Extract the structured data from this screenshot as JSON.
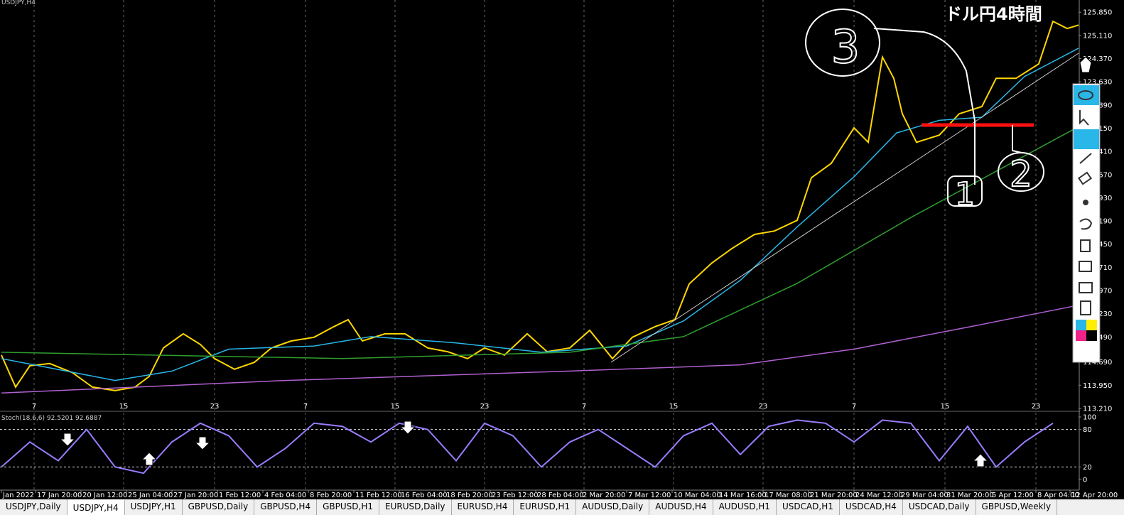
{
  "chart_data": [
    {
      "type": "line",
      "symbol": "USDJPY,H4",
      "annotation_title": "ドル円4時間",
      "handwritten": [
        "3",
        "1",
        "2"
      ],
      "xlim": [
        -0.5,
        379
      ],
      "ylim": [
        113.14,
        126.24
      ],
      "xticks": [
        {
          "value": 11.5,
          "label": "7"
        },
        {
          "value": 43,
          "label": "15"
        },
        {
          "value": 75,
          "label": "23"
        },
        {
          "value": 107,
          "label": "7"
        },
        {
          "value": 138.5,
          "label": "15"
        },
        {
          "value": 170,
          "label": "23"
        },
        {
          "value": 205,
          "label": "7"
        },
        {
          "value": 236.5,
          "label": "15"
        },
        {
          "value": 268,
          "label": "23"
        },
        {
          "value": 300,
          "label": "7"
        },
        {
          "value": 332,
          "label": "15"
        },
        {
          "value": 364,
          "label": "23"
        }
      ],
      "yticks": [
        {
          "value": 125.85,
          "label": "125.850"
        },
        {
          "value": 125.11,
          "label": "125.110"
        },
        {
          "value": 124.37,
          "label": "124.370"
        },
        {
          "value": 123.63,
          "label": "123.630"
        },
        {
          "value": 122.89,
          "label": "122.890"
        },
        {
          "value": 122.15,
          "label": "122.150"
        },
        {
          "value": 121.41,
          "label": "121.410"
        },
        {
          "value": 120.67,
          "label": "120.670"
        },
        {
          "value": 119.93,
          "label": "119.930"
        },
        {
          "value": 119.19,
          "label": "119.190"
        },
        {
          "value": 118.45,
          "label": "118.450"
        },
        {
          "value": 117.71,
          "label": "117.710"
        },
        {
          "value": 116.97,
          "label": "116.970"
        },
        {
          "value": 116.23,
          "label": "116.230"
        },
        {
          "value": 115.49,
          "label": "115.490"
        },
        {
          "value": 114.69,
          "label": "114.690"
        },
        {
          "value": 113.95,
          "label": "113.950"
        },
        {
          "value": 113.21,
          "label": "113.210"
        }
      ],
      "grid": true,
      "series": [
        {
          "color": "#ffd700",
          "x": [
            0,
            5,
            10,
            17,
            25,
            32,
            40,
            47,
            52,
            57,
            64,
            70,
            75,
            82,
            89,
            95,
            102,
            110,
            117,
            122,
            127,
            135,
            142,
            150,
            157,
            164,
            170,
            177,
            185,
            192,
            200,
            207,
            215,
            222,
            230,
            237,
            242,
            250,
            257,
            265,
            272,
            280,
            285,
            292,
            300,
            305,
            310,
            314,
            317,
            322,
            330,
            337,
            345,
            350,
            357,
            365,
            370,
            375,
            379
          ],
          "values": [
            114.91,
            113.89,
            114.57,
            114.64,
            114.35,
            113.89,
            113.78,
            113.89,
            114.23,
            115.14,
            115.59,
            115.25,
            114.8,
            114.46,
            114.68,
            115.14,
            115.36,
            115.48,
            115.82,
            116.04,
            115.36,
            115.59,
            115.59,
            115.14,
            115.02,
            114.8,
            115.14,
            114.91,
            115.59,
            115.02,
            115.14,
            115.7,
            114.8,
            115.48,
            115.82,
            116.04,
            117.18,
            117.85,
            118.31,
            118.76,
            118.87,
            119.21,
            120.57,
            121.03,
            122.16,
            121.7,
            124.42,
            123.74,
            122.61,
            121.7,
            121.93,
            122.61,
            122.84,
            123.74,
            123.74,
            124.2,
            125.56,
            125.33,
            125.44
          ]
        },
        {
          "color": "#29b6e8",
          "x": [
            0,
            40,
            60,
            80,
            110,
            130,
            160,
            190,
            220,
            240,
            260,
            280,
            300,
            315,
            330,
            345,
            360,
            379
          ],
          "values": [
            114.8,
            114.1,
            114.4,
            115.1,
            115.2,
            115.5,
            115.3,
            115.0,
            115.2,
            116.0,
            117.3,
            119.0,
            120.6,
            122.0,
            122.4,
            122.5,
            123.8,
            124.7
          ]
        },
        {
          "color": "#2e9e2e",
          "x": [
            0,
            120,
            200,
            240,
            280,
            320,
            379
          ],
          "values": [
            115.0,
            114.8,
            115.0,
            115.5,
            117.2,
            119.3,
            122.2
          ]
        },
        {
          "color": "#b060d0",
          "x": [
            0,
            100,
            200,
            260,
            300,
            340,
            379
          ],
          "values": [
            113.7,
            114.1,
            114.4,
            114.6,
            115.1,
            115.8,
            116.5
          ]
        }
      ]
    },
    {
      "type": "line",
      "title": "Stoch(18,6,6) 92.5201 92.6887",
      "xlim": [
        -0.5,
        379
      ],
      "ylim": [
        0,
        100
      ],
      "yticks": [
        0,
        20,
        80,
        100
      ],
      "xticks": [
        {
          "value": 0,
          "label": "Jan 2022"
        },
        {
          "value": 12,
          "label": "17 Jan 20:00"
        },
        {
          "value": 28,
          "label": "20 Jan 12:00"
        },
        {
          "value": 44,
          "label": "25 Jan 04:00"
        },
        {
          "value": 60,
          "label": "27 Jan 20:00"
        },
        {
          "value": 76,
          "label": "1 Feb 12:00"
        },
        {
          "value": 92,
          "label": "4 Feb 04:00"
        },
        {
          "value": 108,
          "label": "8 Feb 20:00"
        },
        {
          "value": 124,
          "label": "11 Feb 12:00"
        },
        {
          "value": 140,
          "label": "16 Feb 04:00"
        },
        {
          "value": 156,
          "label": "18 Feb 20:00"
        },
        {
          "value": 172,
          "label": "23 Feb 12:00"
        },
        {
          "value": 188,
          "label": "28 Feb 04:00"
        },
        {
          "value": 204,
          "label": "2 Mar 20:00"
        },
        {
          "value": 220,
          "label": "7 Mar 12:00"
        },
        {
          "value": 236,
          "label": "10 Mar 04:00"
        },
        {
          "value": 252,
          "label": "14 Mar 16:00"
        },
        {
          "value": 268,
          "label": "17 Mar 08:00"
        },
        {
          "value": 284,
          "label": "21 Mar 20:00"
        },
        {
          "value": 300,
          "label": "24 Mar 12:00"
        },
        {
          "value": 316,
          "label": "29 Mar 04:00"
        },
        {
          "value": 332,
          "label": "31 Mar 20:00"
        },
        {
          "value": 348,
          "label": "5 Apr 12:00"
        },
        {
          "value": 364,
          "label": "8 Apr 04:00"
        },
        {
          "value": 376,
          "label": "12 Apr 20:00"
        }
      ],
      "series": [
        {
          "color": "#9a7cff",
          "x": [
            0,
            10,
            20,
            30,
            40,
            50,
            60,
            70,
            80,
            90,
            100,
            110,
            120,
            130,
            140,
            150,
            160,
            170,
            180,
            190,
            200,
            210,
            220,
            230,
            240,
            250,
            260,
            270,
            280,
            290,
            300,
            310,
            320,
            330,
            340,
            350,
            360,
            370
          ],
          "values": [
            20,
            60,
            30,
            80,
            20,
            10,
            60,
            90,
            70,
            20,
            50,
            90,
            85,
            60,
            90,
            80,
            30,
            90,
            70,
            20,
            60,
            80,
            50,
            20,
            70,
            90,
            40,
            85,
            95,
            90,
            60,
            95,
            90,
            30,
            85,
            20,
            60,
            90
          ]
        }
      ]
    }
  ],
  "tabs": [
    "USDJPY,Daily",
    "USDJPY,H4",
    "USDJPY,H1",
    "GBPUSD,Daily",
    "GBPUSD,H4",
    "GBPUSD,H1",
    "EURUSD,Daily",
    "EURUSD,H4",
    "EURUSD,H1",
    "AUDUSD,Daily",
    "AUDUSD,H4",
    "AUDUSD,H1",
    "USDCAD,H1",
    "USDCAD,H4",
    "USDCAD,Daily",
    "GBPUSD,Weekly"
  ]
}
